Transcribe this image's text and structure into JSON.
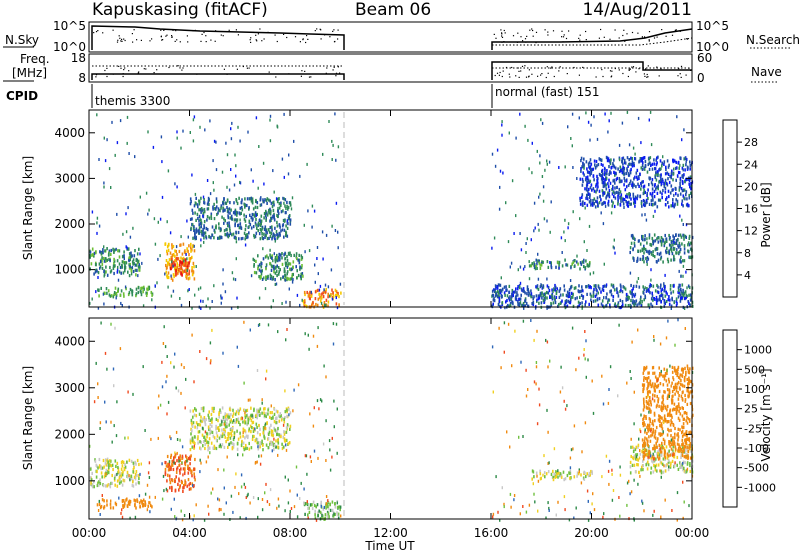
{
  "header": {
    "station": "Kapuskasing (fitACF)",
    "beam": "Beam 06",
    "date": "14/Aug/2011"
  },
  "strips": {
    "nsky_label": "N.Sky",
    "nsearch_label": "N.Search",
    "nsky_ticks": [
      "10^5",
      "10^0"
    ],
    "nsearch_ticks": [
      "10^5",
      "10^0"
    ],
    "freq_label": "Freq.",
    "freq_unit": "[MHz]",
    "freq_ticks": [
      "18",
      "8"
    ],
    "nave_label": "Nave",
    "nave_ticks": [
      "60",
      "0"
    ],
    "cpid_label": "CPID",
    "cpid_segments": [
      {
        "label": "themis 3300",
        "start_hour": 0.0,
        "end_hour": 10.0
      },
      {
        "label": "normal (fast) 151",
        "start_hour": 16.0,
        "end_hour": 24.0
      }
    ]
  },
  "axes": {
    "x_ticks": [
      "00:00",
      "04:00",
      "08:00",
      "12:00",
      "16:00",
      "20:00",
      "00:00"
    ],
    "xlabel": "Time UT",
    "y_ticks": [
      "1000",
      "2000",
      "3000",
      "4000"
    ],
    "ylabel": "Slant Range [km]"
  },
  "power_scale": {
    "label": "Power [dB]",
    "ticks": [
      "4",
      "8",
      "12",
      "16",
      "20",
      "24",
      "28"
    ],
    "colors": [
      "#0a1cf0",
      "#1f4ea8",
      "#2f8a58",
      "#6cbf34",
      "#f5c800",
      "#f08a10",
      "#f04a20",
      "#e81010"
    ]
  },
  "velocity_scale": {
    "label": "Velocity [m s⁻¹]",
    "ticks": [
      "1000",
      "500",
      "100",
      "25",
      "-25",
      "-100",
      "-500",
      "-1000"
    ],
    "colors": [
      "#1a2cc0",
      "#2f68b8",
      "#2d8a48",
      "#70c040",
      "#c8c8c8",
      "#f0d020",
      "#f08a10",
      "#f04a20",
      "#e81010"
    ]
  },
  "chart_data": [
    {
      "type": "heatmap",
      "title": "Power",
      "x_unit": "hour UT",
      "xlim": [
        0,
        24
      ],
      "ylim": [
        180,
        4500
      ],
      "colorbar": {
        "label": "Power [dB]",
        "range": [
          0,
          32
        ]
      },
      "regions": [
        {
          "x": [
            0.0,
            2.0
          ],
          "y": [
            900,
            1500
          ],
          "value": 10
        },
        {
          "x": [
            0.3,
            2.5
          ],
          "y": [
            450,
            650
          ],
          "value": 12
        },
        {
          "x": [
            3.0,
            4.2
          ],
          "y": [
            800,
            1600
          ],
          "value": 20
        },
        {
          "x": [
            3.2,
            4.0
          ],
          "y": [
            900,
            1300
          ],
          "value": 27
        },
        {
          "x": [
            4.0,
            8.0
          ],
          "y": [
            1700,
            2600
          ],
          "value": 8
        },
        {
          "x": [
            6.5,
            8.5
          ],
          "y": [
            800,
            1400
          ],
          "value": 10
        },
        {
          "x": [
            8.5,
            10.0
          ],
          "y": [
            200,
            600
          ],
          "value": 22
        },
        {
          "x": [
            17.5,
            20.0
          ],
          "y": [
            1050,
            1250
          ],
          "value": 9
        },
        {
          "x": [
            21.5,
            24.0
          ],
          "y": [
            1200,
            1800
          ],
          "value": 8
        },
        {
          "x": [
            16.0,
            24.0
          ],
          "y": [
            200,
            700
          ],
          "value": 6
        },
        {
          "x": [
            19.5,
            24.0
          ],
          "y": [
            2400,
            3500
          ],
          "value": 5
        }
      ],
      "data_gap": [
        10.0,
        16.0
      ]
    },
    {
      "type": "heatmap",
      "title": "Velocity",
      "x_unit": "hour UT",
      "xlim": [
        0,
        24
      ],
      "ylim": [
        180,
        4500
      ],
      "colorbar": {
        "label": "Velocity [m s⁻¹]",
        "range": [
          -1000,
          1000
        ]
      },
      "regions": [
        {
          "x": [
            0.0,
            2.0
          ],
          "y": [
            900,
            1500
          ],
          "value": 0
        },
        {
          "x": [
            0.3,
            2.5
          ],
          "y": [
            450,
            650
          ],
          "value": -300
        },
        {
          "x": [
            3.0,
            4.2
          ],
          "y": [
            800,
            1600
          ],
          "value": -500
        },
        {
          "x": [
            4.0,
            8.0
          ],
          "y": [
            1700,
            2600
          ],
          "value": 0
        },
        {
          "x": [
            8.5,
            10.0
          ],
          "y": [
            200,
            600
          ],
          "value": 60
        },
        {
          "x": [
            17.5,
            20.0
          ],
          "y": [
            1050,
            1250
          ],
          "value": 0
        },
        {
          "x": [
            21.5,
            24.0
          ],
          "y": [
            1200,
            1800
          ],
          "value": 0
        },
        {
          "x": [
            22.0,
            24.0
          ],
          "y": [
            1500,
            3500
          ],
          "value": -200
        }
      ],
      "data_gap": [
        10.0,
        16.0
      ]
    }
  ]
}
